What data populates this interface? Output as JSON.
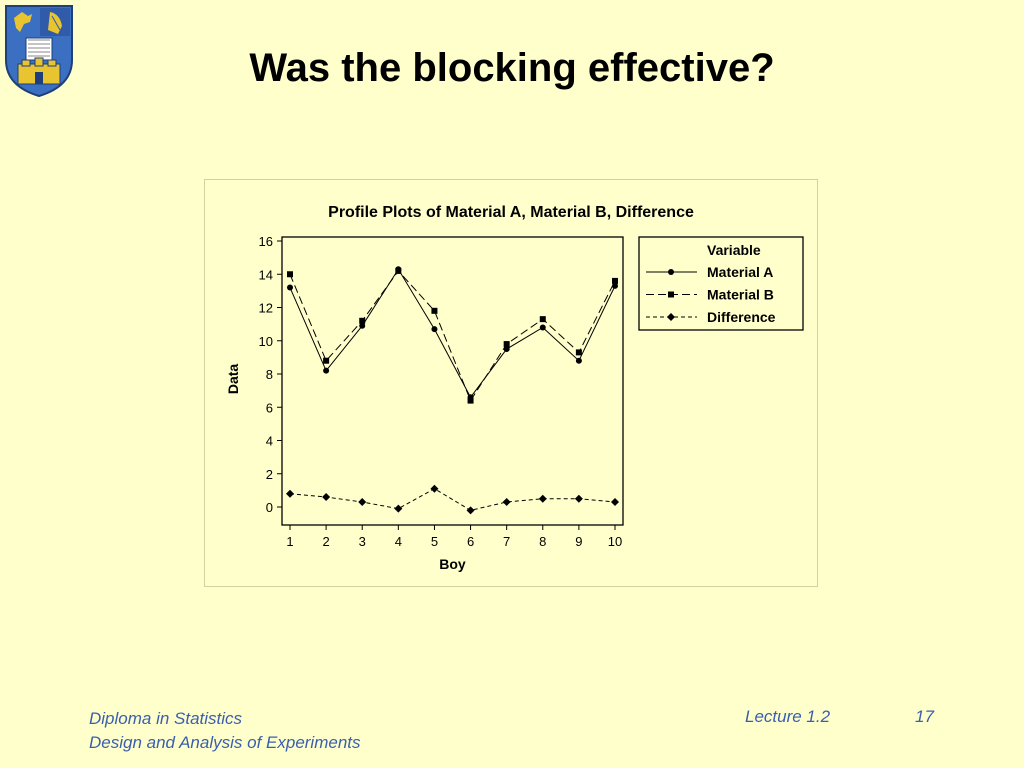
{
  "slide": {
    "title": "Was the blocking effective?",
    "footer_line1": "Diploma in Statistics",
    "footer_line2": "Design and Analysis of Experiments",
    "lecture": "Lecture 1.2",
    "page": "17"
  },
  "colors": {
    "background": "#ffffcc",
    "footer_text": "#3a5fae",
    "crest_blue": "#3b6fc1",
    "crest_gold": "#e8c431"
  },
  "crest_icon": "university-crest-icon",
  "chart_data": {
    "type": "line",
    "title": "Profile Plots of Material A, Material B, Difference",
    "xlabel": "Boy",
    "ylabel": "Data",
    "x": [
      1,
      2,
      3,
      4,
      5,
      6,
      7,
      8,
      9,
      10
    ],
    "xlim": [
      1,
      10
    ],
    "ylim": [
      0,
      16
    ],
    "yticks": [
      0,
      2,
      4,
      6,
      8,
      10,
      12,
      14,
      16
    ],
    "grid": false,
    "legend_title": "Variable",
    "legend_position": "top-right",
    "series": [
      {
        "name": "Material A",
        "marker": "circle",
        "line": "solid",
        "values": [
          13.2,
          8.2,
          10.9,
          14.3,
          10.7,
          6.6,
          9.5,
          10.8,
          8.8,
          13.3
        ]
      },
      {
        "name": "Material B",
        "marker": "square",
        "line": "dashed",
        "values": [
          14.0,
          8.8,
          11.2,
          14.2,
          11.8,
          6.4,
          9.8,
          11.3,
          9.3,
          13.6
        ]
      },
      {
        "name": "Difference",
        "marker": "diamond",
        "line": "short-dashed",
        "values": [
          0.8,
          0.6,
          0.3,
          -0.1,
          1.1,
          -0.2,
          0.3,
          0.5,
          0.5,
          0.3
        ]
      }
    ]
  }
}
